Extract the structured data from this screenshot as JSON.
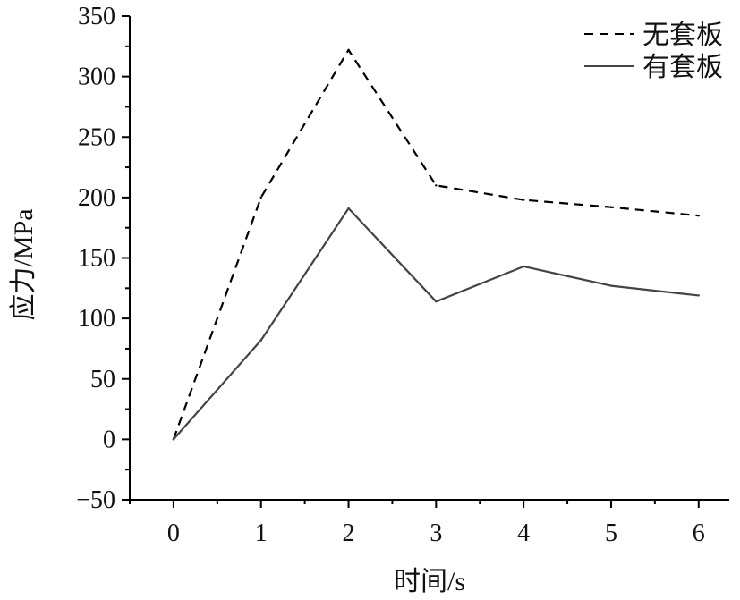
{
  "chart_data": {
    "type": "line",
    "title": "",
    "xlabel": "时间/s",
    "ylabel": "应力/MPa",
    "x": [
      0,
      1,
      2,
      3,
      4,
      5,
      6
    ],
    "xlim": [
      -0.5,
      6.35
    ],
    "ylim": [
      -50,
      350
    ],
    "xticks": [
      "0",
      "1",
      "2",
      "3",
      "4",
      "5",
      "6"
    ],
    "yticks": [
      "−50",
      "0",
      "50",
      "100",
      "150",
      "200",
      "250",
      "300",
      "350"
    ],
    "grid": false,
    "legend_position": "top-right",
    "series": [
      {
        "name": "无套板",
        "style": "dashed",
        "color": "#000000",
        "values": [
          0,
          200,
          322,
          210,
          198,
          192,
          185
        ]
      },
      {
        "name": "有套板",
        "style": "solid",
        "color": "#444444",
        "values": [
          0,
          82,
          191,
          114,
          143,
          127,
          119
        ]
      }
    ]
  }
}
